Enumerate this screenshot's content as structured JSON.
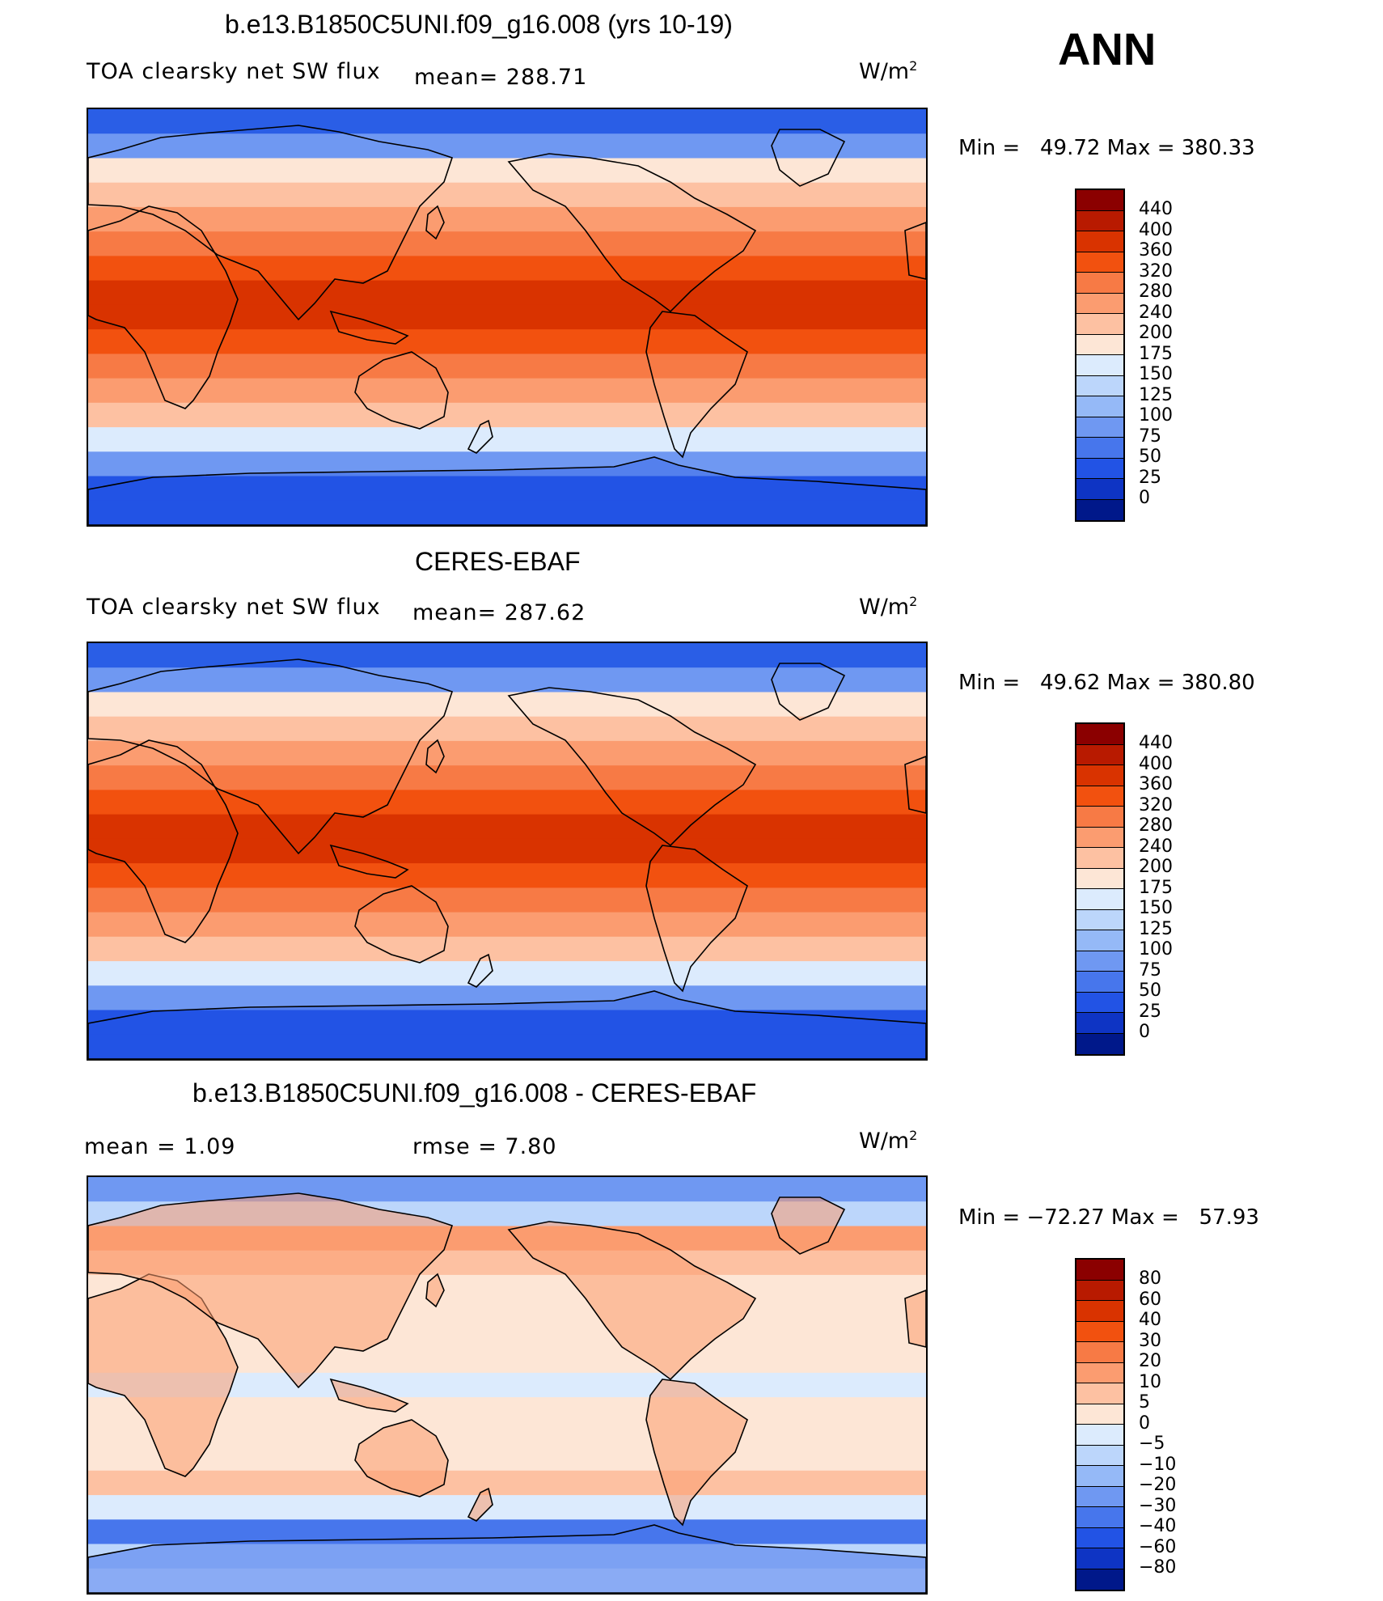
{
  "season": "ANN",
  "panels": [
    {
      "title": "b.e13.B1850C5UNI.f09_g16.008 (yrs 10-19)",
      "subtitle": "TOA clearsky net SW flux",
      "stat": "mean= 288.71",
      "units": "W/m",
      "units_sup": "2",
      "minmax": "Min =   49.72 Max = 380.33",
      "kind": "abs"
    },
    {
      "title": "CERES-EBAF",
      "subtitle": "TOA clearsky net SW flux",
      "stat": "mean= 287.62",
      "units": "W/m",
      "units_sup": "2",
      "minmax": "Min =   49.62 Max = 380.80",
      "kind": "abs"
    },
    {
      "title": "b.e13.B1850C5UNI.f09_g16.008 - CERES-EBAF",
      "stat_left": "mean =    1.09",
      "stat_right": "rmse =    7.80",
      "units": "W/m",
      "units_sup": "2",
      "minmax": "Min = −72.27 Max =   57.93",
      "kind": "diff"
    }
  ],
  "colorbars": {
    "abs": {
      "labels": [
        "440",
        "400",
        "360",
        "320",
        "280",
        "240",
        "200",
        "175",
        "150",
        "125",
        "100",
        "75",
        "50",
        "25",
        "0"
      ],
      "colors": [
        "#8b0000",
        "#b81a00",
        "#d93300",
        "#f2510f",
        "#f77a45",
        "#fb9c70",
        "#fdc1a2",
        "#fde6d6",
        "#dcebfd",
        "#bcd6fb",
        "#95b9f7",
        "#6f98f2",
        "#4776ec",
        "#2253e5",
        "#0e34c4",
        "#00188a"
      ]
    },
    "diff": {
      "labels": [
        "80",
        "60",
        "40",
        "30",
        "20",
        "10",
        "5",
        "0",
        "−5",
        "−10",
        "−20",
        "−30",
        "−40",
        "−60",
        "−80"
      ],
      "colors": [
        "#8b0000",
        "#b81a00",
        "#d93300",
        "#f2510f",
        "#f77a45",
        "#fb9c70",
        "#fdc1a2",
        "#fde6d6",
        "#dcebfd",
        "#bcd6fb",
        "#95b9f7",
        "#6f98f2",
        "#4776ec",
        "#2253e5",
        "#0e34c4",
        "#00188a"
      ]
    }
  },
  "abs_bands": [
    "#2a5ee6",
    "#6f98f2",
    "#fde6d6",
    "#fdc1a2",
    "#fb9c70",
    "#f77a45",
    "#f2510f",
    "#d93300",
    "#d93300",
    "#f2510f",
    "#f77a45",
    "#fb9c70",
    "#fdc1a2",
    "#dcebfd",
    "#6f98f2",
    "#2253e5",
    "#2253e5"
  ],
  "diff_bands": [
    "#6f98f2",
    "#bcd6fb",
    "#fb9c70",
    "#fdc1a2",
    "#fde6d6",
    "#fde6d6",
    "#fde6d6",
    "#fde6d6",
    "#dcebfd",
    "#fde6d6",
    "#fde6d6",
    "#fde6d6",
    "#fdc1a2",
    "#dcebfd",
    "#4776ec",
    "#bcd6fb",
    "#dcebfd"
  ]
}
